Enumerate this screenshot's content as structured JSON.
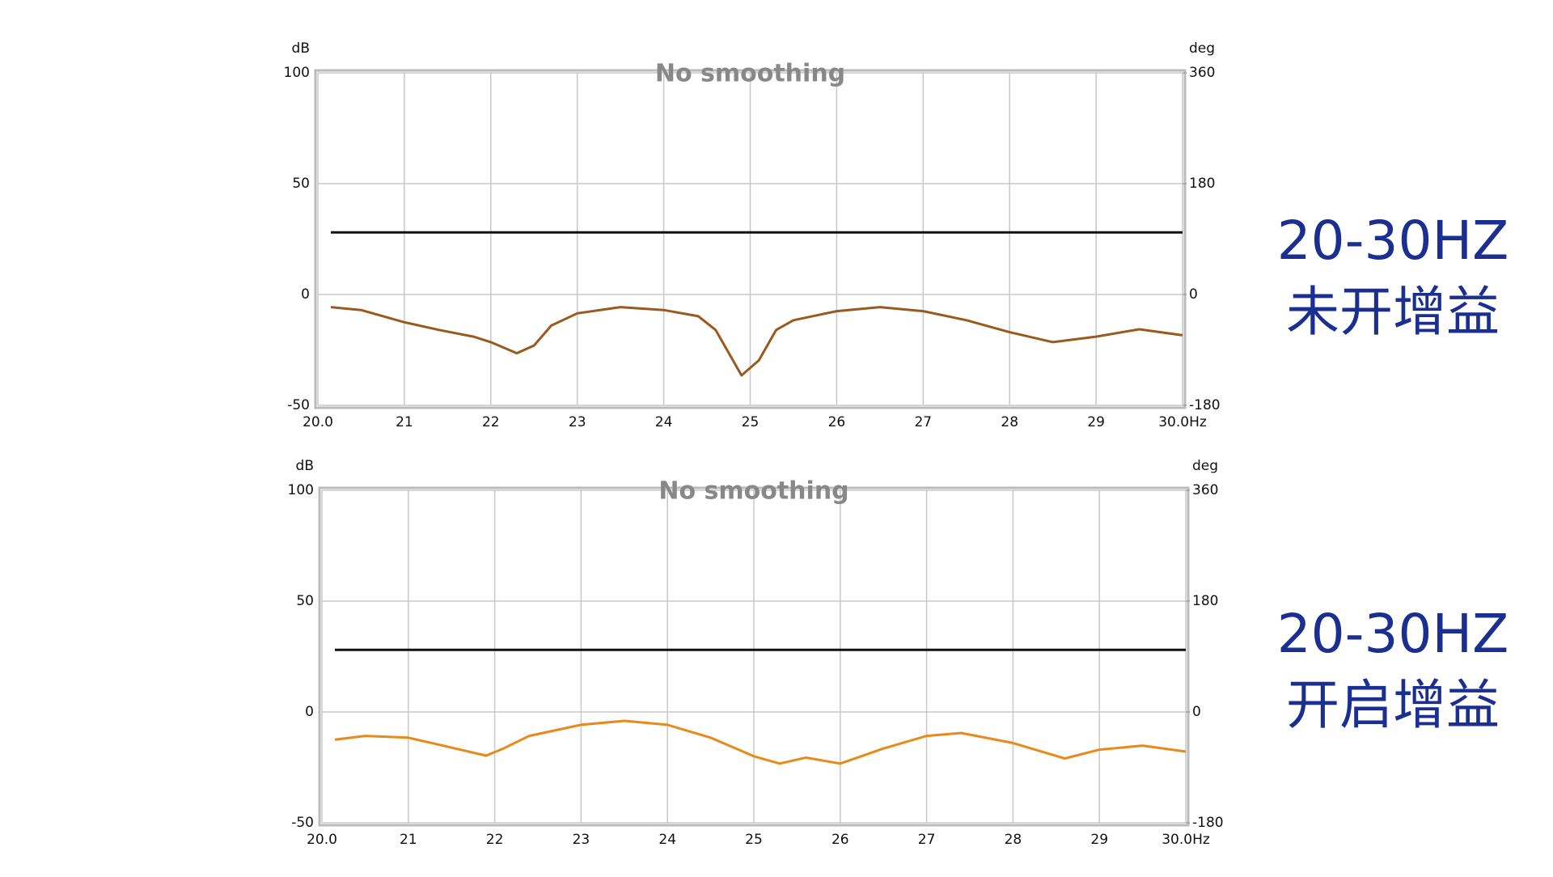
{
  "chart_data": [
    {
      "type": "line",
      "annotation": "No smoothing",
      "ylabel": "dB",
      "y2label": "deg",
      "side_label": [
        "20-30HZ",
        "未开增益"
      ],
      "x": [
        20.15,
        20.5,
        21,
        21.4,
        21.8,
        22,
        22.3,
        22.5,
        22.7,
        23,
        23.5,
        24,
        24.4,
        24.6,
        24.9,
        25.1,
        25.3,
        25.5,
        26,
        26.5,
        27,
        27.5,
        28,
        28.5,
        29,
        29.5,
        30
      ],
      "series": [
        {
          "color": "#111111",
          "values": [
            28,
            28,
            28,
            28,
            28,
            28,
            28,
            28,
            28,
            28,
            28,
            28,
            28,
            28,
            28,
            28,
            28,
            28,
            28,
            28,
            28,
            28,
            28,
            28,
            28,
            28,
            28
          ]
        },
        {
          "color": "#9a5a1e",
          "values": [
            -5.7,
            -7,
            -12.5,
            -16,
            -19,
            -21.5,
            -26.5,
            -23,
            -14,
            -8.5,
            -5.7,
            -7,
            -9.8,
            -16,
            -36.5,
            -29.7,
            -16,
            -11.6,
            -7.5,
            -5.7,
            -7.5,
            -11.6,
            -17,
            -21.5,
            -19,
            -15.7,
            -18.4
          ]
        }
      ],
      "xlim": [
        20,
        30
      ],
      "xticks": [
        {
          "value": 20,
          "label": "20.0"
        },
        21,
        22,
        23,
        24,
        25,
        26,
        27,
        28,
        29,
        {
          "value": 30,
          "label": "30.0Hz"
        }
      ],
      "ylim": [
        -50,
        100
      ],
      "yticks": [
        100,
        50,
        0,
        -50
      ],
      "y2lim": [
        -180,
        360
      ],
      "y2ticks": [
        360,
        180,
        0,
        -180
      ],
      "grid": true
    },
    {
      "type": "line",
      "annotation": "No smoothing",
      "ylabel": "dB",
      "y2label": "deg",
      "side_label": [
        "20-30HZ",
        "开启增益"
      ],
      "x": [
        20.15,
        20.5,
        21,
        21.4,
        21.9,
        22.1,
        22.4,
        23,
        23.5,
        24,
        24.5,
        25,
        25.3,
        25.6,
        26,
        26.5,
        27,
        27.4,
        28,
        28.6,
        29,
        29.5,
        30
      ],
      "series": [
        {
          "color": "#111111",
          "values": [
            28,
            28,
            28,
            28,
            28,
            28,
            28,
            28,
            28,
            28,
            28,
            28,
            28,
            28,
            28,
            28,
            28,
            28,
            28,
            28,
            28,
            28,
            28
          ]
        },
        {
          "color": "#e88a1a",
          "values": [
            -12.5,
            -10.8,
            -11.6,
            -15.2,
            -19.7,
            -16.5,
            -10.8,
            -5.8,
            -4,
            -5.8,
            -11.6,
            -20,
            -23.3,
            -20.6,
            -23.3,
            -16.5,
            -10.8,
            -9.5,
            -14,
            -21,
            -17,
            -15.2,
            -17.9
          ]
        }
      ],
      "xlim": [
        20,
        30
      ],
      "xticks": [
        {
          "value": 20,
          "label": "20.0"
        },
        21,
        22,
        23,
        24,
        25,
        26,
        27,
        28,
        29,
        {
          "value": 30,
          "label": "30.0Hz"
        }
      ],
      "ylim": [
        -50,
        100
      ],
      "yticks": [
        100,
        50,
        0,
        -50
      ],
      "y2lim": [
        -180,
        360
      ],
      "y2ticks": [
        360,
        180,
        0,
        -180
      ],
      "grid": true
    }
  ]
}
